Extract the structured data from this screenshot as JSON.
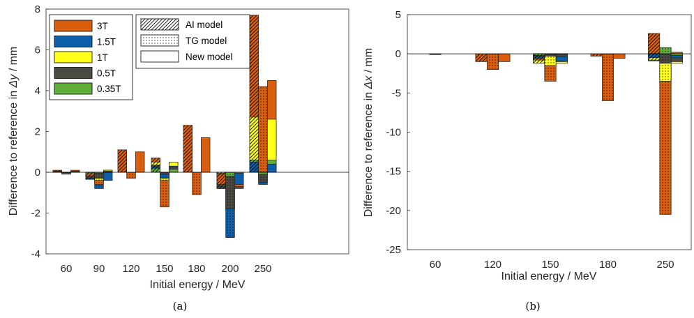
{
  "colors": {
    "3T": "#d95f0e",
    "1.5T": "#0a5fa8",
    "1T": "#ffff1a",
    "0.5T": "#4a4a42",
    "0.35T": "#5fae3a"
  },
  "legend_field": {
    "entries": [
      {
        "name": "3T",
        "color": "#d95f0e"
      },
      {
        "name": "1.5T",
        "color": "#0a5fa8"
      },
      {
        "name": "1T",
        "color": "#ffff1a"
      },
      {
        "name": "0.5T",
        "color": "#4a4a42"
      },
      {
        "name": "0.35T",
        "color": "#5fae3a"
      }
    ]
  },
  "legend_model": {
    "entries": [
      {
        "name": "AI model",
        "pattern": "hatch"
      },
      {
        "name": "TG model",
        "pattern": "dots"
      },
      {
        "name": "New model",
        "pattern": "none"
      }
    ]
  },
  "chart_data": [
    {
      "type": "bar",
      "sublabel": "(a)",
      "xlabel": "Initial energy / MeV",
      "ylabel_parts": [
        "Difference to reference in ",
        "Δy",
        " / mm"
      ],
      "ylim": [
        -4,
        8
      ],
      "yticks": [
        -4,
        -2,
        0,
        2,
        4,
        6,
        8
      ],
      "categories": [
        "60",
        "90",
        "120",
        "150",
        "180",
        "200",
        "250"
      ],
      "models": [
        "AI model",
        "TG model",
        "New model"
      ],
      "fields": [
        "3T",
        "1.5T",
        "1T",
        "0.5T",
        "0.35T"
      ],
      "series": [
        {
          "name": "AI model",
          "values": {
            "3T": [
              0.1,
              -0.2,
              1.1,
              0.7,
              2.3,
              -0.6,
              7.7
            ],
            "1.5T": [
              0.05,
              -0.35,
              0,
              0.25,
              0,
              -0.8,
              0.5
            ],
            "1T": [
              0.05,
              -0.1,
              0,
              0.5,
              0,
              -0.05,
              2.7
            ],
            "0.5T": [
              0.02,
              -0.3,
              0,
              0.35,
              0,
              -0.8,
              0.6
            ],
            "0.35T": [
              0.02,
              -0.05,
              0,
              0.2,
              0,
              -0.1,
              0.6
            ]
          }
        },
        {
          "name": "TG model",
          "values": {
            "3T": [
              -0.05,
              -0.6,
              -0.3,
              -1.7,
              -1.1,
              0,
              4.2
            ],
            "1.5T": [
              -0.05,
              -0.8,
              0,
              -0.3,
              0,
              -3.2,
              -0.6
            ],
            "1T": [
              -0.1,
              -0.4,
              0,
              -0.4,
              0,
              -1.8,
              -0.5
            ],
            "0.5T": [
              -0.02,
              -0.3,
              0,
              -0.1,
              0,
              -1.8,
              -0.5
            ],
            "0.35T": [
              -0.01,
              -0.05,
              0,
              0,
              0,
              -0.2,
              -0.1
            ]
          }
        },
        {
          "name": "New model",
          "values": {
            "3T": [
              0.1,
              0.1,
              1.0,
              0.5,
              1.7,
              -0.7,
              4.5
            ],
            "1.5T": [
              0.05,
              -0.4,
              0,
              0.3,
              0,
              -0.6,
              0.4
            ],
            "1T": [
              0.05,
              0.1,
              0,
              0.5,
              0,
              -0.05,
              2.6
            ],
            "0.5T": [
              0.02,
              0.05,
              0,
              0.25,
              0,
              -0.8,
              0.6
            ],
            "0.35T": [
              0.01,
              0.02,
              0,
              0.15,
              0,
              -0.05,
              0.6
            ]
          }
        }
      ]
    },
    {
      "type": "bar",
      "sublabel": "(b)",
      "xlabel": "Initial energy / MeV",
      "ylabel_parts": [
        "Difference to reference in ",
        "Δx",
        " / mm"
      ],
      "ylim": [
        -25,
        5
      ],
      "yticks": [
        -25,
        -20,
        -15,
        -10,
        -5,
        0,
        5
      ],
      "categories": [
        "60",
        "120",
        "150",
        "180",
        "250"
      ],
      "models": [
        "AI model",
        "TG model",
        "New model"
      ],
      "fields": [
        "3T",
        "1.5T",
        "1T",
        "0.5T",
        "0.35T"
      ],
      "series": [
        {
          "name": "AI model",
          "values": {
            "3T": [
              0,
              -1.0,
              -0.8,
              -0.3,
              2.6
            ],
            "1.5T": [
              0,
              0,
              -0.6,
              0,
              -0.5
            ],
            "1T": [
              0,
              0,
              -1.2,
              0,
              -0.8
            ],
            "0.5T": [
              0,
              0,
              -0.4,
              0,
              -0.9
            ],
            "0.35T": [
              0,
              0,
              -0.2,
              0,
              -0.9
            ]
          }
        },
        {
          "name": "TG model",
          "values": {
            "3T": [
              -0.1,
              -2.0,
              -3.5,
              -6.0,
              -20.5
            ],
            "1.5T": [
              0,
              0,
              -1.5,
              0,
              -3.5
            ],
            "1T": [
              0,
              0,
              -1.5,
              0,
              -3.5
            ],
            "0.5T": [
              0,
              0,
              -0.3,
              0,
              -1.2
            ],
            "0.35T": [
              0,
              0,
              -0.1,
              0,
              0.8
            ]
          }
        },
        {
          "name": "New model",
          "values": {
            "3T": [
              0,
              -1.0,
              -1.0,
              -0.6,
              0.2
            ],
            "1.5T": [
              0,
              0,
              -0.9,
              0,
              -0.5
            ],
            "1T": [
              0,
              0,
              -1.2,
              0,
              -1.2
            ],
            "0.5T": [
              0,
              0,
              -0.4,
              0,
              -1.0
            ],
            "0.35T": [
              0,
              0,
              -0.1,
              0,
              -0.2
            ]
          }
        }
      ]
    }
  ]
}
